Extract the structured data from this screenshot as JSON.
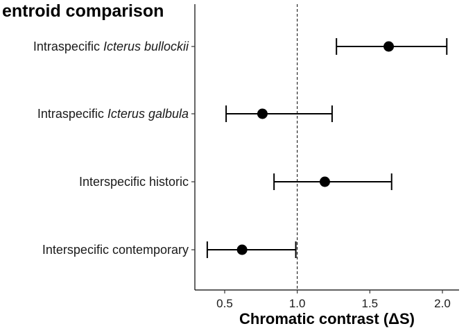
{
  "chart_data": {
    "type": "scatter",
    "title": "entroid comparison",
    "xlabel": "Chromatic contrast (ΔS)",
    "ylabel": "",
    "xlim": [
      0.28,
      2.1
    ],
    "xticks": [
      0.5,
      1.0,
      1.5,
      2.0
    ],
    "xtick_labels": [
      "0.5",
      "1.0",
      "1.5",
      "2.0"
    ],
    "reference_line": {
      "x": 1.0,
      "style": "dashed"
    },
    "categories": [
      {
        "prefix": "Intraspecific ",
        "italic": "Icterus bullockii",
        "mean": 1.63,
        "lower": 1.27,
        "upper": 2.03
      },
      {
        "prefix": "Intraspecific ",
        "italic": "Icterus galbula",
        "mean": 0.76,
        "lower": 0.51,
        "upper": 1.24
      },
      {
        "prefix": "Interspecific historic",
        "italic": "",
        "mean": 1.19,
        "lower": 0.84,
        "upper": 1.65
      },
      {
        "prefix": "Interspecific contemporary",
        "italic": "",
        "mean": 0.62,
        "lower": 0.38,
        "upper": 0.99
      }
    ],
    "grid": false,
    "legend": "none"
  }
}
